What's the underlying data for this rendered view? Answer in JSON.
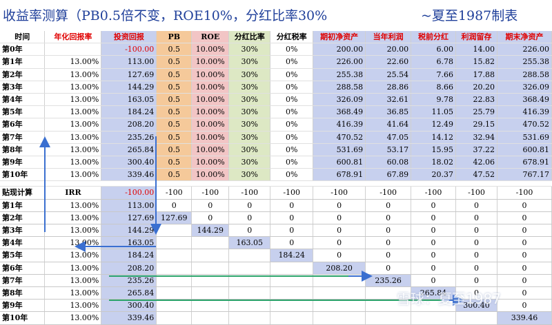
{
  "title": {
    "left": "收益率测算（PB0.5倍不变，ROE10%，分红比率30%",
    "right": "~夏至1987制表"
  },
  "headers": [
    "时间",
    "年化回报率",
    "投资回报",
    "PB",
    "ROE",
    "分红比率",
    "分红税率",
    "期初净资产",
    "当年利润",
    "税前分红",
    "利润留存",
    "期末净资产"
  ],
  "rows": [
    [
      "第0年",
      "",
      "-100.00",
      "0.5",
      "10.00%",
      "30%",
      "0%",
      "200.00",
      "20.00",
      "6.00",
      "14.00",
      "226.00"
    ],
    [
      "第1年",
      "13.00%",
      "113.00",
      "0.5",
      "10.00%",
      "30%",
      "0%",
      "226.00",
      "22.60",
      "6.78",
      "15.82",
      "255.38"
    ],
    [
      "第2年",
      "13.00%",
      "127.69",
      "0.5",
      "10.00%",
      "30%",
      "0%",
      "255.38",
      "25.54",
      "7.66",
      "17.88",
      "288.58"
    ],
    [
      "第3年",
      "13.00%",
      "144.29",
      "0.5",
      "10.00%",
      "30%",
      "0%",
      "288.58",
      "28.86",
      "8.66",
      "20.20",
      "326.09"
    ],
    [
      "第4年",
      "13.00%",
      "163.05",
      "0.5",
      "10.00%",
      "30%",
      "0%",
      "326.09",
      "32.61",
      "9.78",
      "22.83",
      "368.49"
    ],
    [
      "第5年",
      "13.00%",
      "184.24",
      "0.5",
      "10.00%",
      "30%",
      "0%",
      "368.49",
      "36.85",
      "11.05",
      "25.79",
      "416.39"
    ],
    [
      "第6年",
      "13.00%",
      "208.20",
      "0.5",
      "10.00%",
      "30%",
      "0%",
      "416.39",
      "41.64",
      "12.49",
      "29.15",
      "470.52"
    ],
    [
      "第7年",
      "13.00%",
      "235.26",
      "0.5",
      "10.00%",
      "30%",
      "0%",
      "470.52",
      "47.05",
      "14.12",
      "32.94",
      "531.69"
    ],
    [
      "第8年",
      "13.00%",
      "265.84",
      "0.5",
      "10.00%",
      "30%",
      "0%",
      "531.69",
      "53.17",
      "15.95",
      "37.22",
      "600.81"
    ],
    [
      "第9年",
      "13.00%",
      "300.40",
      "0.5",
      "10.00%",
      "30%",
      "0%",
      "600.81",
      "60.08",
      "18.02",
      "42.06",
      "678.91"
    ],
    [
      "第10年",
      "13.00%",
      "339.46",
      "0.5",
      "10.00%",
      "30%",
      "0%",
      "678.91",
      "67.89",
      "20.37",
      "47.52",
      "767.17"
    ]
  ],
  "discount": {
    "header": [
      "贴现计算",
      "IRR",
      "-100.00",
      "-100",
      "-100",
      "-100",
      "-100",
      "-100",
      "-100",
      "-100",
      "-100",
      "-100"
    ],
    "rows": [
      [
        "第1年",
        "13.00%",
        "113.00",
        "0",
        "0",
        "0",
        "0",
        "0",
        "0",
        "0",
        "0",
        "0"
      ],
      [
        "第2年",
        "13.00%",
        "127.69",
        "127.69",
        "0",
        "0",
        "0",
        "0",
        "0",
        "0",
        "0",
        "0"
      ],
      [
        "第3年",
        "13.00%",
        "144.29",
        "",
        "144.29",
        "0",
        "0",
        "0",
        "0",
        "0",
        "0",
        "0"
      ],
      [
        "第4年",
        "13.00%",
        "163.05",
        "",
        "",
        "163.05",
        "0",
        "0",
        "0",
        "0",
        "0",
        "0"
      ],
      [
        "第5年",
        "13.00%",
        "184.24",
        "",
        "",
        "",
        "184.24",
        "0",
        "0",
        "0",
        "0",
        "0"
      ],
      [
        "第6年",
        "13.00%",
        "208.20",
        "",
        "",
        "",
        "",
        "208.20",
        "0",
        "0",
        "0",
        "0"
      ],
      [
        "第7年",
        "13.00%",
        "235.26",
        "",
        "",
        "",
        "",
        "",
        "235.26",
        "0",
        "0",
        "0"
      ],
      [
        "第8年",
        "13.00%",
        "265.84",
        "",
        "",
        "",
        "",
        "",
        "",
        "265.84",
        "0",
        "0"
      ],
      [
        "第9年",
        "13.00%",
        "300.40",
        "",
        "",
        "",
        "",
        "",
        "",
        "",
        "300.40",
        "0"
      ],
      [
        "第10年",
        "13.00%",
        "339.46",
        "",
        "",
        "",
        "",
        "",
        "",
        "",
        "",
        "339.46"
      ]
    ]
  },
  "watermark": "雪球：夏至1987",
  "colors": {
    "title": "#1f3f9a",
    "red": "#e00000",
    "blue_band": "#c7d0ee",
    "pb_band": "#f5c99a",
    "roe_band": "#f2c5c5",
    "payout_band": "#dde8c4",
    "arrow_blue": "#3a6fd0",
    "arrow_green": "#2aa36a"
  }
}
